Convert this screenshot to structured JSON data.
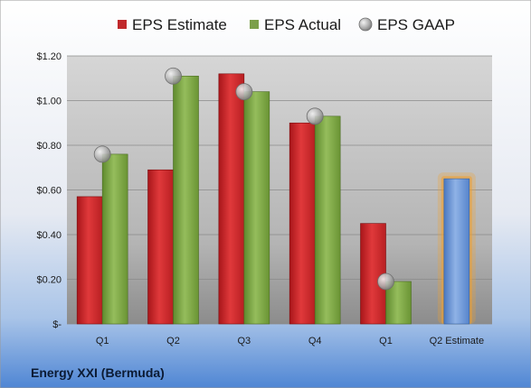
{
  "chart_data": {
    "type": "bar",
    "categories": [
      "Q1",
      "Q2",
      "Q3",
      "Q4",
      "Q1",
      "Q2 Estimate"
    ],
    "series": [
      {
        "name": "EPS Estimate",
        "values": [
          0.57,
          0.69,
          1.12,
          0.9,
          0.45,
          null
        ]
      },
      {
        "name": "EPS Actual",
        "values": [
          0.76,
          1.11,
          1.04,
          0.93,
          0.19,
          null
        ]
      },
      {
        "name": "EPS GAAP",
        "values": [
          0.76,
          1.11,
          1.04,
          0.93,
          0.19,
          null
        ]
      }
    ],
    "highlighted_estimate": {
      "category": "Q2 Estimate",
      "value": 0.65
    },
    "yticks": [
      0,
      0.2,
      0.4,
      0.6,
      0.8,
      1.0,
      1.2
    ],
    "ytick_labels": [
      "$-",
      "$0.20",
      "$0.40",
      "$0.60",
      "$0.80",
      "$1.00",
      "$1.20"
    ],
    "ylim": [
      0,
      1.2
    ],
    "legend_position": "top",
    "grid": true,
    "colors": {
      "estimate": "#c0282b",
      "actual": "#7ca04a",
      "gaap": "#a8a8a8",
      "highlight": "#6e9ad6",
      "highlight_glow": "#f0a030"
    }
  },
  "company": "Energy XXI (Bermuda)"
}
